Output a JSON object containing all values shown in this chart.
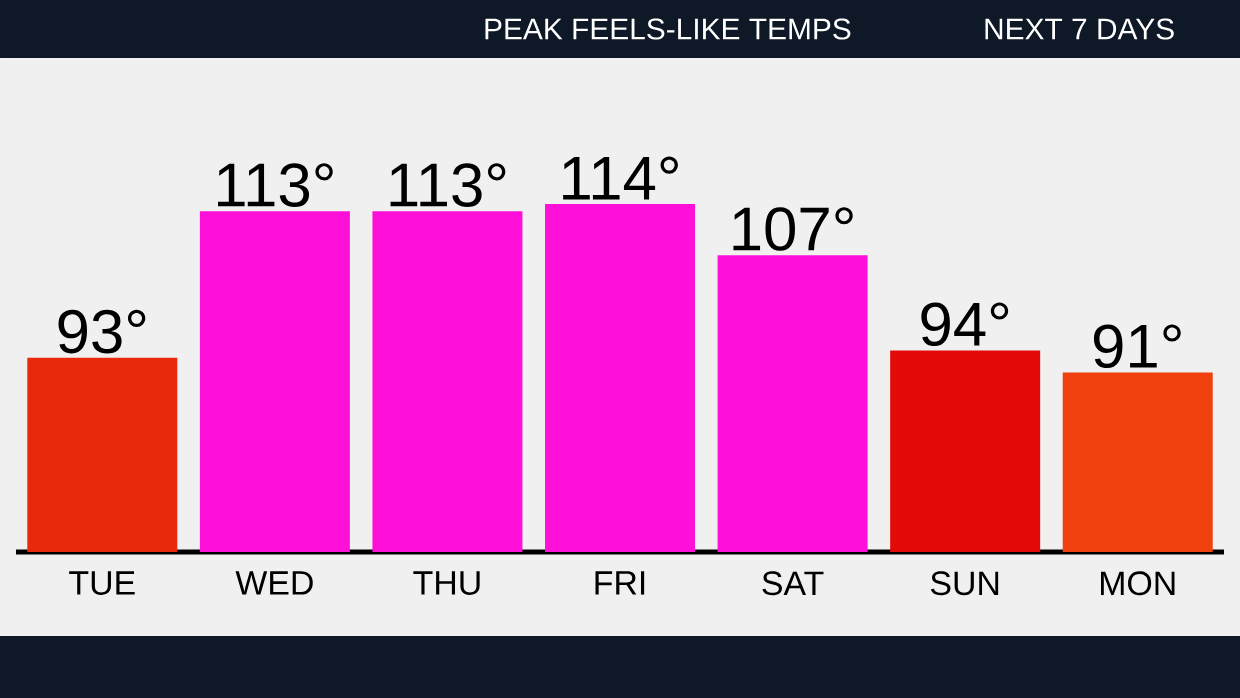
{
  "chart_data": {
    "type": "bar",
    "title": "PEAK FEELS-LIKE TEMPS",
    "subtitle": "NEXT 7 DAYS",
    "categories": [
      "TUE",
      "WED",
      "THU",
      "FRI",
      "SAT",
      "SUN",
      "MON"
    ],
    "values": [
      93,
      113,
      113,
      114,
      107,
      94,
      91
    ],
    "colors": [
      "#e8290c",
      "#ff10d8",
      "#ff10d8",
      "#ff10d8",
      "#ff10d8",
      "#e50a0a",
      "#f0400e"
    ],
    "value_labels": [
      "93°",
      "113°",
      "113°",
      "114°",
      "107°",
      "94°",
      "91°"
    ],
    "ylim": [
      66.5,
      114
    ]
  }
}
